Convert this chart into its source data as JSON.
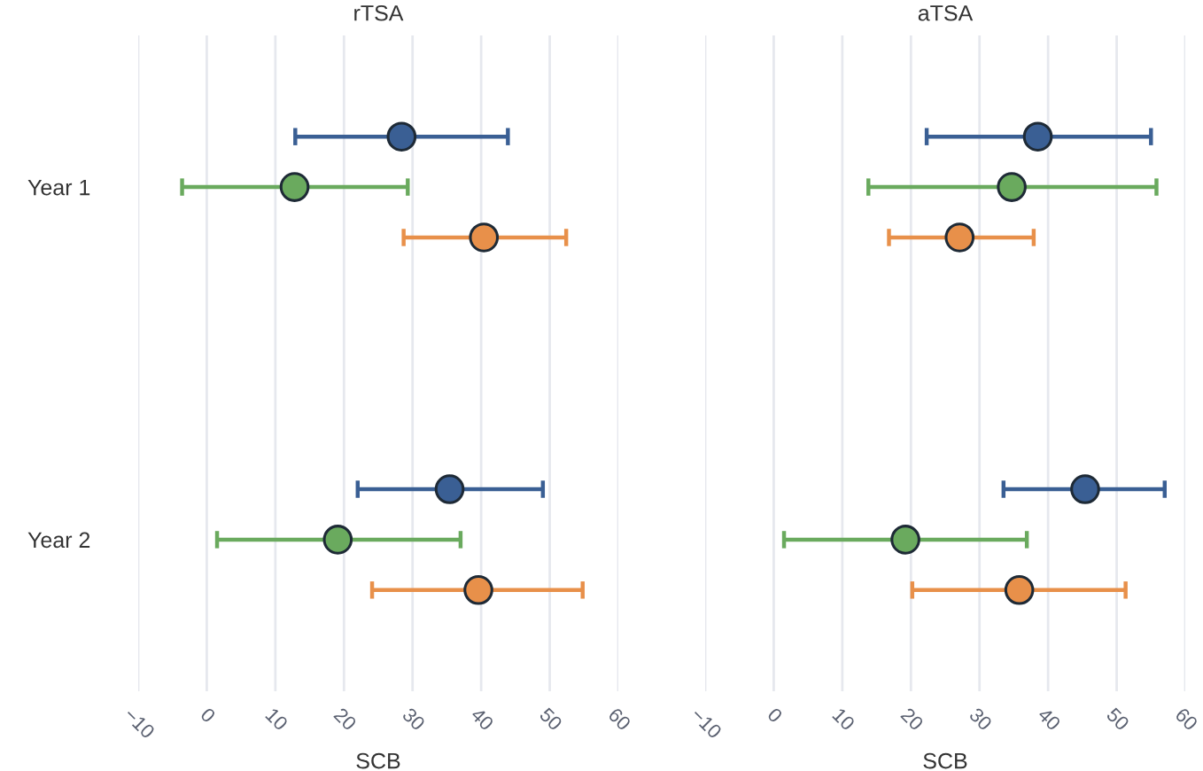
{
  "chart_data": [
    {
      "type": "scatter",
      "orientation": "horizontal",
      "title": "rTSA",
      "xlabel": "SCB",
      "categories": [
        "Year 1",
        "Year 2"
      ],
      "xlim": [
        -10,
        60
      ],
      "xticks": [
        {
          "value": -10,
          "label": "−10"
        },
        0,
        10,
        20,
        30,
        40,
        50,
        60
      ],
      "grid": "x",
      "marker": "circle",
      "series": [
        {
          "color": "#3a5f94",
          "values": [
            28.4,
            35.4
          ],
          "errors": [
            [
              12.9,
              43.9
            ],
            [
              22.0,
              49.0
            ]
          ]
        },
        {
          "color": "#6aaa5e",
          "values": [
            12.8,
            19.1
          ],
          "errors": [
            [
              -3.6,
              29.3
            ],
            [
              1.5,
              37.0
            ]
          ]
        },
        {
          "color": "#e8904a",
          "values": [
            40.4,
            39.6
          ],
          "errors": [
            [
              28.7,
              52.4
            ],
            [
              24.1,
              54.8
            ]
          ]
        }
      ]
    },
    {
      "type": "scatter",
      "orientation": "horizontal",
      "title": "aTSA",
      "xlabel": "SCB",
      "categories": [
        null,
        null
      ],
      "xlim": [
        -10,
        60
      ],
      "xticks": [
        {
          "value": -10,
          "label": "−10"
        },
        0,
        10,
        20,
        30,
        40,
        50,
        60
      ],
      "grid": "x",
      "marker": "circle",
      "tick_labels": "x",
      "series": [
        {
          "color": "#3a5f94",
          "values": [
            38.5,
            45.4
          ],
          "errors": [
            [
              22.3,
              55.0
            ],
            [
              33.5,
              57.0
            ]
          ]
        },
        {
          "color": "#6aaa5e",
          "values": [
            34.7,
            19.2
          ],
          "errors": [
            [
              13.8,
              55.8
            ],
            [
              1.5,
              36.9
            ]
          ]
        },
        {
          "color": "#e8904a",
          "values": [
            27.1,
            35.8
          ],
          "errors": [
            [
              16.8,
              37.9
            ],
            [
              20.2,
              51.3
            ]
          ]
        }
      ]
    }
  ]
}
